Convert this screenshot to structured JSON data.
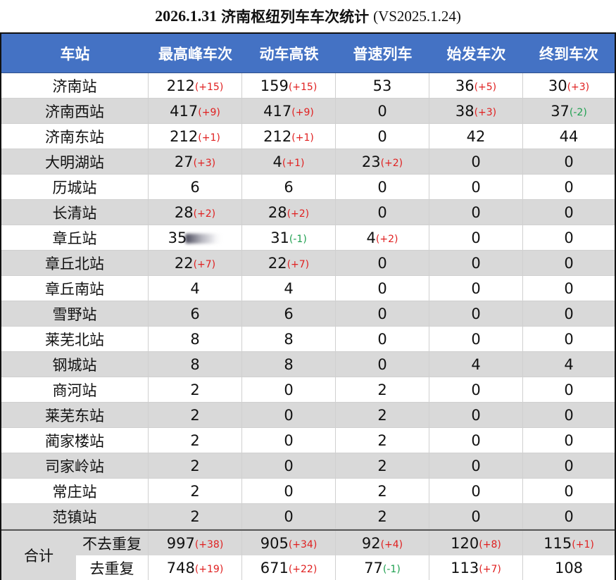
{
  "title": {
    "date": "2026.1.31",
    "main": "济南枢纽列车车次统计",
    "compare": "(VS2025.1.24)"
  },
  "colors": {
    "header_bg": "#4472c4",
    "header_text": "#ffffff",
    "alt_row_bg": "#d9d9d9",
    "increase": "#e02020",
    "decrease": "#1fa050"
  },
  "columns": [
    "车站",
    "最高峰车次",
    "动车高铁",
    "普速列车",
    "始发车次",
    "终到车次"
  ],
  "rows": [
    {
      "station": "济南站",
      "cells": [
        {
          "v": "212",
          "d": "(+15)",
          "dir": "up"
        },
        {
          "v": "159",
          "d": "(+15)",
          "dir": "up"
        },
        {
          "v": "53",
          "d": "",
          "dir": ""
        },
        {
          "v": "36",
          "d": "(+5)",
          "dir": "up"
        },
        {
          "v": "30",
          "d": "(+3)",
          "dir": "up"
        }
      ]
    },
    {
      "station": "济南西站",
      "cells": [
        {
          "v": "417",
          "d": "(+9)",
          "dir": "up"
        },
        {
          "v": "417",
          "d": "(+9)",
          "dir": "up"
        },
        {
          "v": "0",
          "d": "",
          "dir": ""
        },
        {
          "v": "38",
          "d": "(+3)",
          "dir": "up"
        },
        {
          "v": "37",
          "d": "(-2)",
          "dir": "down"
        }
      ]
    },
    {
      "station": "济南东站",
      "cells": [
        {
          "v": "212",
          "d": "(+1)",
          "dir": "up"
        },
        {
          "v": "212",
          "d": "(+1)",
          "dir": "up"
        },
        {
          "v": "0",
          "d": "",
          "dir": ""
        },
        {
          "v": "42",
          "d": "",
          "dir": ""
        },
        {
          "v": "44",
          "d": "",
          "dir": ""
        }
      ]
    },
    {
      "station": "大明湖站",
      "cells": [
        {
          "v": "27",
          "d": "(+3)",
          "dir": "up"
        },
        {
          "v": "4",
          "d": "(+1)",
          "dir": "up"
        },
        {
          "v": "23",
          "d": "(+2)",
          "dir": "up"
        },
        {
          "v": "0",
          "d": "",
          "dir": ""
        },
        {
          "v": "0",
          "d": "",
          "dir": ""
        }
      ]
    },
    {
      "station": "历城站",
      "cells": [
        {
          "v": "6",
          "d": "",
          "dir": ""
        },
        {
          "v": "6",
          "d": "",
          "dir": ""
        },
        {
          "v": "0",
          "d": "",
          "dir": ""
        },
        {
          "v": "0",
          "d": "",
          "dir": ""
        },
        {
          "v": "0",
          "d": "",
          "dir": ""
        }
      ]
    },
    {
      "station": "长清站",
      "cells": [
        {
          "v": "28",
          "d": "(+2)",
          "dir": "up"
        },
        {
          "v": "28",
          "d": "(+2)",
          "dir": "up"
        },
        {
          "v": "0",
          "d": "",
          "dir": ""
        },
        {
          "v": "0",
          "d": "",
          "dir": ""
        },
        {
          "v": "0",
          "d": "",
          "dir": ""
        }
      ]
    },
    {
      "station": "章丘站",
      "cells": [
        {
          "v": "35",
          "d": "",
          "dir": "",
          "obscured": true
        },
        {
          "v": "31",
          "d": "(-1)",
          "dir": "down"
        },
        {
          "v": "4",
          "d": "(+2)",
          "dir": "up"
        },
        {
          "v": "0",
          "d": "",
          "dir": ""
        },
        {
          "v": "0",
          "d": "",
          "dir": ""
        }
      ]
    },
    {
      "station": "章丘北站",
      "cells": [
        {
          "v": "22",
          "d": "(+7)",
          "dir": "up"
        },
        {
          "v": "22",
          "d": "(+7)",
          "dir": "up"
        },
        {
          "v": "0",
          "d": "",
          "dir": ""
        },
        {
          "v": "0",
          "d": "",
          "dir": ""
        },
        {
          "v": "0",
          "d": "",
          "dir": ""
        }
      ]
    },
    {
      "station": "章丘南站",
      "cells": [
        {
          "v": "4",
          "d": "",
          "dir": ""
        },
        {
          "v": "4",
          "d": "",
          "dir": ""
        },
        {
          "v": "0",
          "d": "",
          "dir": ""
        },
        {
          "v": "0",
          "d": "",
          "dir": ""
        },
        {
          "v": "0",
          "d": "",
          "dir": ""
        }
      ]
    },
    {
      "station": "雪野站",
      "cells": [
        {
          "v": "6",
          "d": "",
          "dir": ""
        },
        {
          "v": "6",
          "d": "",
          "dir": ""
        },
        {
          "v": "0",
          "d": "",
          "dir": ""
        },
        {
          "v": "0",
          "d": "",
          "dir": ""
        },
        {
          "v": "0",
          "d": "",
          "dir": ""
        }
      ]
    },
    {
      "station": "莱芜北站",
      "cells": [
        {
          "v": "8",
          "d": "",
          "dir": ""
        },
        {
          "v": "8",
          "d": "",
          "dir": ""
        },
        {
          "v": "0",
          "d": "",
          "dir": ""
        },
        {
          "v": "0",
          "d": "",
          "dir": ""
        },
        {
          "v": "0",
          "d": "",
          "dir": ""
        }
      ]
    },
    {
      "station": "钢城站",
      "cells": [
        {
          "v": "8",
          "d": "",
          "dir": ""
        },
        {
          "v": "8",
          "d": "",
          "dir": ""
        },
        {
          "v": "0",
          "d": "",
          "dir": ""
        },
        {
          "v": "4",
          "d": "",
          "dir": ""
        },
        {
          "v": "4",
          "d": "",
          "dir": ""
        }
      ]
    },
    {
      "station": "商河站",
      "cells": [
        {
          "v": "2",
          "d": "",
          "dir": ""
        },
        {
          "v": "0",
          "d": "",
          "dir": ""
        },
        {
          "v": "2",
          "d": "",
          "dir": ""
        },
        {
          "v": "0",
          "d": "",
          "dir": ""
        },
        {
          "v": "0",
          "d": "",
          "dir": ""
        }
      ]
    },
    {
      "station": "莱芜东站",
      "cells": [
        {
          "v": "2",
          "d": "",
          "dir": ""
        },
        {
          "v": "0",
          "d": "",
          "dir": ""
        },
        {
          "v": "2",
          "d": "",
          "dir": ""
        },
        {
          "v": "0",
          "d": "",
          "dir": ""
        },
        {
          "v": "0",
          "d": "",
          "dir": ""
        }
      ]
    },
    {
      "station": "蔺家楼站",
      "cells": [
        {
          "v": "2",
          "d": "",
          "dir": ""
        },
        {
          "v": "0",
          "d": "",
          "dir": ""
        },
        {
          "v": "2",
          "d": "",
          "dir": ""
        },
        {
          "v": "0",
          "d": "",
          "dir": ""
        },
        {
          "v": "0",
          "d": "",
          "dir": ""
        }
      ]
    },
    {
      "station": "司家岭站",
      "cells": [
        {
          "v": "2",
          "d": "",
          "dir": ""
        },
        {
          "v": "0",
          "d": "",
          "dir": ""
        },
        {
          "v": "2",
          "d": "",
          "dir": ""
        },
        {
          "v": "0",
          "d": "",
          "dir": ""
        },
        {
          "v": "0",
          "d": "",
          "dir": ""
        }
      ]
    },
    {
      "station": "常庄站",
      "cells": [
        {
          "v": "2",
          "d": "",
          "dir": ""
        },
        {
          "v": "0",
          "d": "",
          "dir": ""
        },
        {
          "v": "2",
          "d": "",
          "dir": ""
        },
        {
          "v": "0",
          "d": "",
          "dir": ""
        },
        {
          "v": "0",
          "d": "",
          "dir": ""
        }
      ]
    },
    {
      "station": "范镇站",
      "cells": [
        {
          "v": "2",
          "d": "",
          "dir": ""
        },
        {
          "v": "0",
          "d": "",
          "dir": ""
        },
        {
          "v": "2",
          "d": "",
          "dir": ""
        },
        {
          "v": "0",
          "d": "",
          "dir": ""
        },
        {
          "v": "0",
          "d": "",
          "dir": ""
        }
      ]
    }
  ],
  "footer": {
    "label": "合计",
    "rows": [
      {
        "label": "不去重复",
        "cells": [
          {
            "v": "997",
            "d": "(+38)",
            "dir": "up"
          },
          {
            "v": "905",
            "d": "(+34)",
            "dir": "up"
          },
          {
            "v": "92",
            "d": "(+4)",
            "dir": "up"
          },
          {
            "v": "120",
            "d": "(+8)",
            "dir": "up"
          },
          {
            "v": "115",
            "d": "(+1)",
            "dir": "up"
          }
        ]
      },
      {
        "label": "去重复",
        "cells": [
          {
            "v": "748",
            "d": "(+19)",
            "dir": "up"
          },
          {
            "v": "671",
            "d": "(+22)",
            "dir": "up"
          },
          {
            "v": "77",
            "d": "(-1)",
            "dir": "down"
          },
          {
            "v": "113",
            "d": "(+7)",
            "dir": "up"
          },
          {
            "v": "108",
            "d": "",
            "dir": ""
          }
        ]
      }
    ]
  }
}
